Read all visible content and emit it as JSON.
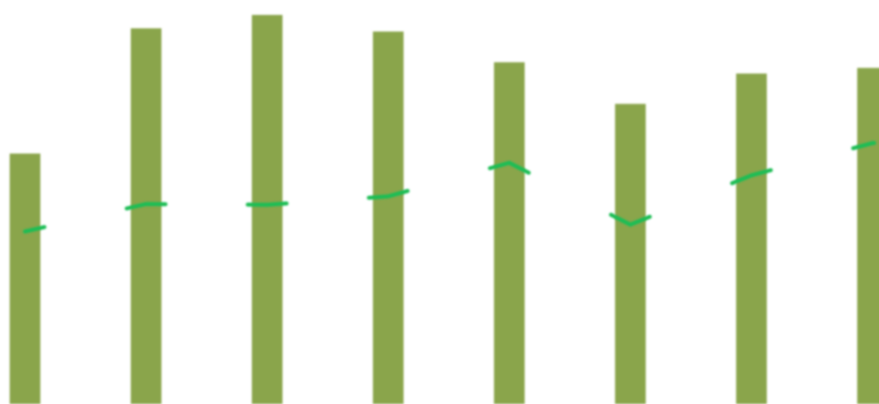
{
  "chart_data": {
    "type": "bar",
    "categories": [
      "",
      "",
      "",
      "",
      "",
      "",
      "",
      ""
    ],
    "bar_series": {
      "name": "",
      "values": [
        62,
        93,
        96.3,
        92.2,
        84.6,
        74.3,
        81.8,
        83.2
      ],
      "color": "#8aa54b"
    },
    "line_series": {
      "name": "",
      "values": [
        42.7,
        49.5,
        49.3,
        51.4,
        59.7,
        44.4,
        56.6,
        64.6
      ],
      "color": "#1fbd55"
    },
    "ylim": [
      0,
      100
    ],
    "grid": false,
    "legend": "none",
    "title": "",
    "xlabel": "",
    "ylabel": ""
  }
}
